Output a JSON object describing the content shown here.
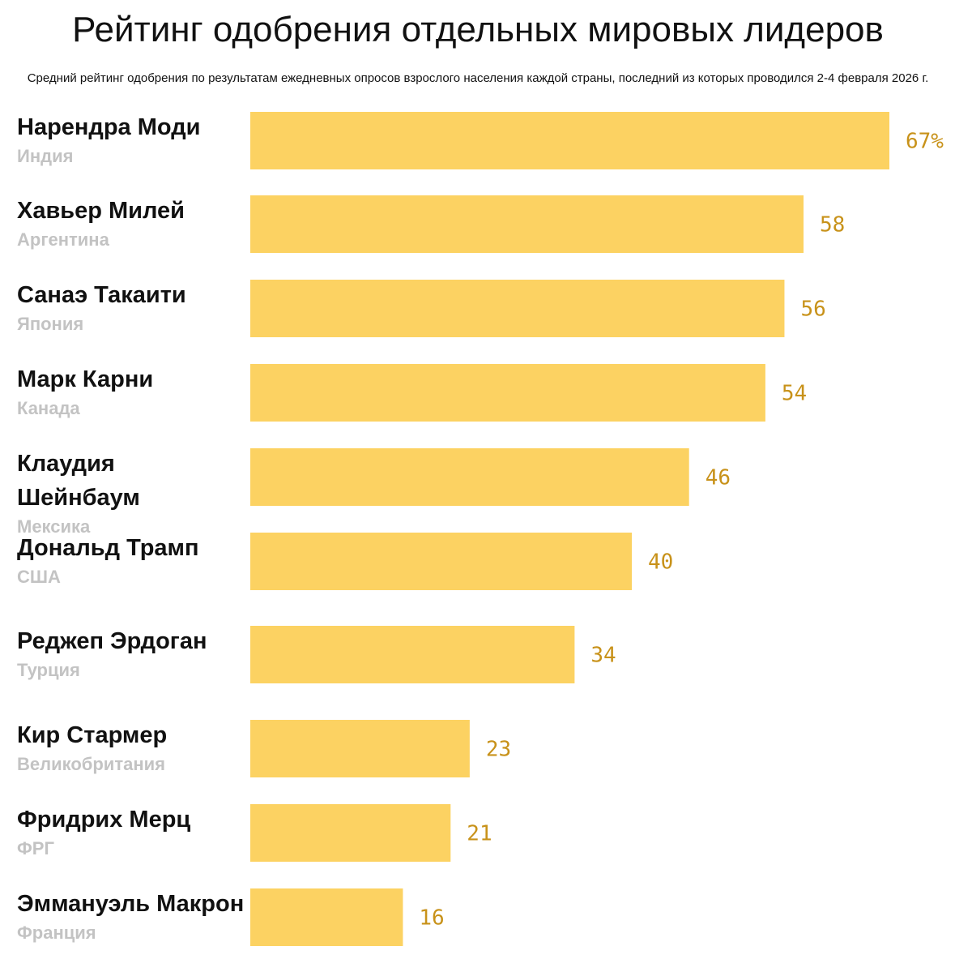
{
  "chart_data": {
    "type": "bar",
    "orientation": "horizontal",
    "title": "Рейтинг одобрения отдельных мировых лидеров",
    "subtitle": "Средний рейтинг одобрения по результатам ежедневных опросов взрослого населения каждой страны, последний из которых проводился 2-4 февраля 2026 г.",
    "xlim": [
      0,
      67
    ],
    "grid": false,
    "bar_color": "#fcd262",
    "value_color": "#c8921a",
    "country_color": "#c3c3c3",
    "categories": [
      "Нарендра Моди",
      "Хавьер Милей",
      "Санаэ Такаити",
      "Марк Карни",
      "Клаудия Шейнбаум",
      "Дональд Трамп",
      "Реджеп Эрдоган",
      "Кир Стармер",
      "Фридрих Мерц",
      "Эммануэль Макрон"
    ],
    "countries": [
      "Индия",
      "Аргентина",
      "Япония",
      "Канада",
      "Мексика",
      "США",
      "Турция",
      "Великобритания",
      "ФРГ",
      "Франция"
    ],
    "values": [
      67,
      58,
      56,
      54,
      46,
      40,
      34,
      23,
      21,
      16
    ],
    "value_labels": [
      "67%",
      "58",
      "56",
      "54",
      "46",
      "40",
      "34",
      "23",
      "21",
      "16"
    ]
  }
}
